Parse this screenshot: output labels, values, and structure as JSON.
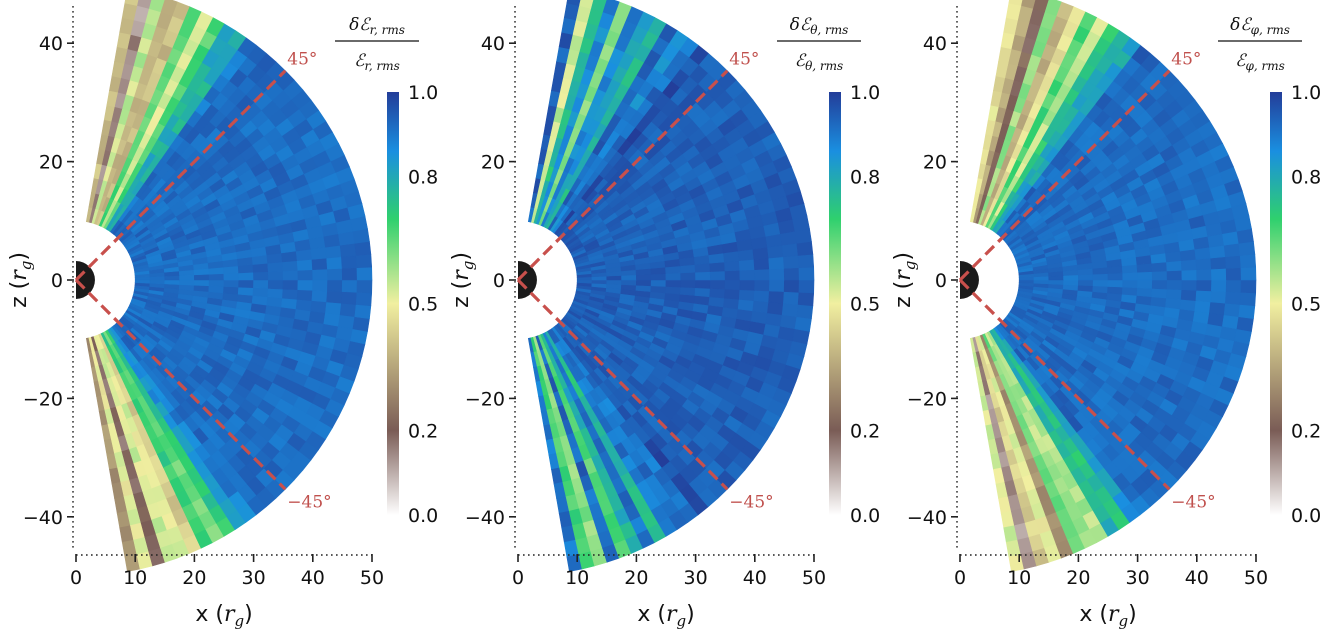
{
  "chart_data": [
    {
      "type": "heatmap",
      "panel": "left",
      "xlabel": "x (r_g)",
      "ylabel": "z (r_g)",
      "xlabel_parts": [
        "x (",
        "r",
        "g",
        ")"
      ],
      "ylabel_parts": [
        "z (",
        "r",
        "g",
        ")"
      ],
      "xlim": [
        0,
        50
      ],
      "ylim": [
        -50,
        50
      ],
      "xticks": [
        "0",
        "10",
        "20",
        "30",
        "40",
        "50"
      ],
      "yticks": [
        "40",
        "20",
        "0",
        "−20",
        "−40"
      ],
      "colorbar": {
        "label": "δĒ_{r,rms} / Ē_{r,rms}",
        "num_main": "δℰ",
        "num_sub": "r, rms",
        "den_main": "ℰ",
        "den_sub": "r, rms",
        "range": [
          0.0,
          1.0
        ],
        "ticks": [
          "1.0",
          "0.8",
          "0.5",
          "0.2",
          "0.0"
        ]
      },
      "lines": [
        {
          "name": "45°",
          "angle_deg": 45
        },
        {
          "name": "−45°",
          "angle_deg": -45
        }
      ],
      "wedge": {
        "r_inner": 10,
        "r_outer": 50,
        "theta_range_deg": [
          -80,
          80
        ]
      },
      "field_profile": {
        "core_value": 0.95,
        "edge_value": 0.3,
        "edge_width_deg": 28
      }
    },
    {
      "type": "heatmap",
      "panel": "middle",
      "xlabel": "x (r_g)",
      "ylabel": "z (r_g)",
      "xlabel_parts": [
        "x (",
        "r",
        "g",
        ")"
      ],
      "ylabel_parts": [
        "z (",
        "r",
        "g",
        ")"
      ],
      "xlim": [
        0,
        50
      ],
      "ylim": [
        -50,
        50
      ],
      "xticks": [
        "0",
        "10",
        "20",
        "30",
        "40",
        "50"
      ],
      "yticks": [
        "40",
        "20",
        "0",
        "−20",
        "−40"
      ],
      "colorbar": {
        "label": "δĒ_{θ,rms} / Ē_{θ,rms}",
        "num_main": "δℰ",
        "num_sub": "θ, rms",
        "den_main": "ℰ",
        "den_sub": "θ, rms",
        "range": [
          0.0,
          1.0
        ],
        "ticks": [
          "1.0",
          "0.8",
          "0.5",
          "0.2",
          "0.0"
        ]
      },
      "lines": [
        {
          "name": "45°",
          "angle_deg": 45
        },
        {
          "name": "−45°",
          "angle_deg": -45
        }
      ],
      "wedge": {
        "r_inner": 10,
        "r_outer": 50,
        "theta_range_deg": [
          -80,
          80
        ]
      },
      "field_profile": {
        "core_value": 0.97,
        "edge_value": 0.7,
        "edge_width_deg": 30
      }
    },
    {
      "type": "heatmap",
      "panel": "right",
      "xlabel": "x (r_g)",
      "ylabel": "z (r_g)",
      "xlabel_parts": [
        "x (",
        "r",
        "g",
        ")"
      ],
      "ylabel_parts": [
        "z (",
        "r",
        "g",
        ")"
      ],
      "xlim": [
        0,
        50
      ],
      "ylim": [
        -50,
        50
      ],
      "xticks": [
        "0",
        "10",
        "20",
        "30",
        "40",
        "50"
      ],
      "yticks": [
        "40",
        "20",
        "0",
        "−20",
        "−40"
      ],
      "colorbar": {
        "label": "δĒ_{φ,rms} / Ē_{φ,rms}",
        "num_main": "δℰ",
        "num_sub": "φ, rms",
        "den_main": "ℰ",
        "den_sub": "φ, rms",
        "range": [
          0.0,
          1.0
        ],
        "ticks": [
          "1.0",
          "0.8",
          "0.5",
          "0.2",
          "0.0"
        ]
      },
      "lines": [
        {
          "name": "45°",
          "angle_deg": 45
        },
        {
          "name": "−45°",
          "angle_deg": -45
        }
      ],
      "wedge": {
        "r_inner": 10,
        "r_outer": 50,
        "theta_range_deg": [
          -80,
          80
        ]
      },
      "field_profile": {
        "core_value": 0.95,
        "edge_value": 0.3,
        "edge_width_deg": 30
      }
    }
  ],
  "colors": {
    "reference_line": "#c8504c",
    "black_hole": "#1a1a1a",
    "colormap_stops": [
      "#ffffff",
      "#7a5c56",
      "#f1efa0",
      "#2fd06e",
      "#1a8fe0",
      "#233d99"
    ]
  }
}
